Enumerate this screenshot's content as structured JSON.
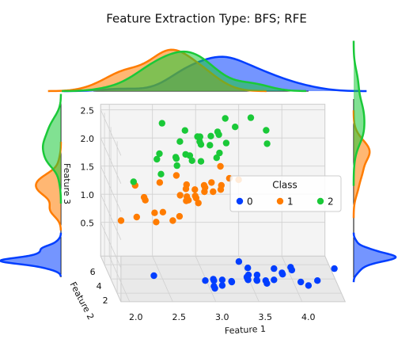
{
  "chart_data": {
    "type": "scatter3d",
    "title": "Feature Extraction Type: BFS; RFE",
    "xlabel": "Feature 1",
    "ylabel": "Feature 2",
    "zlabel": "Feature 3",
    "xlim": [
      1.9,
      4.5
    ],
    "ylim": [
      0.8,
      7.2
    ],
    "zlim": [
      -0.1,
      2.6
    ],
    "xticks": [
      {
        "value": 2,
        "label": "2.0"
      },
      2.5,
      {
        "value": 3,
        "label": "3.0"
      },
      3.5,
      {
        "value": 4,
        "label": "4.0"
      }
    ],
    "yticks": [
      2,
      4,
      6
    ],
    "zticks": [
      0.5,
      {
        "value": 1,
        "label": "1.0"
      },
      1.5,
      {
        "value": 2,
        "label": "2.0"
      },
      2.5
    ],
    "grid": true,
    "legend_title": "Class",
    "legend": "center right",
    "series": [
      {
        "name": "0",
        "color": "#023eff",
        "x": [
          3.5,
          3.0,
          3.2,
          3.1,
          3.6,
          3.9,
          3.4,
          3.4,
          2.9,
          3.1,
          3.7,
          3.4,
          3.0,
          3.0,
          4.0,
          4.4,
          3.9,
          3.5,
          3.8,
          3.8,
          3.4,
          3.7,
          3.6,
          3.3,
          3.4,
          3.0,
          3.4,
          3.5,
          2.3,
          4.2,
          4.1,
          3.2
        ],
        "y": [
          1.4,
          1.4,
          1.3,
          1.5,
          1.4,
          1.7,
          1.4,
          1.5,
          1.4,
          1.5,
          1.5,
          1.6,
          1.4,
          1.1,
          1.2,
          1.5,
          1.3,
          1.4,
          1.7,
          1.5,
          1.7,
          1.5,
          1.0,
          1.7,
          1.9,
          1.6,
          1.6,
          1.5,
          1.3,
          1.4,
          1.5,
          1.2
        ],
        "z": [
          0.2,
          0.2,
          0.2,
          0.2,
          0.2,
          0.4,
          0.3,
          0.2,
          0.2,
          0.1,
          0.2,
          0.2,
          0.1,
          0.1,
          0.2,
          0.4,
          0.4,
          0.3,
          0.3,
          0.3,
          0.2,
          0.4,
          0.2,
          0.5,
          0.2,
          0.2,
          0.4,
          0.2,
          0.3,
          0.2,
          0.1,
          0.2
        ]
      },
      {
        "name": "1",
        "color": "#ff7c00",
        "x": [
          3.2,
          3.2,
          3.1,
          2.3,
          2.8,
          2.8,
          3.3,
          2.4,
          2.9,
          2.7,
          2.0,
          3.0,
          2.2,
          2.9,
          2.9,
          3.1,
          3.0,
          2.7,
          2.2,
          2.5,
          3.2,
          2.8,
          2.5,
          2.8,
          2.9,
          3.0,
          2.8,
          2.6,
          2.4,
          2.7,
          3.4,
          2.3
        ],
        "y": [
          4.7,
          4.5,
          4.9,
          4.0,
          4.6,
          4.5,
          4.7,
          3.3,
          4.6,
          3.9,
          3.5,
          4.2,
          4.0,
          4.7,
          3.6,
          4.4,
          4.5,
          4.1,
          4.5,
          3.9,
          4.8,
          4.0,
          4.9,
          4.7,
          4.3,
          4.4,
          4.8,
          3.5,
          3.8,
          5.1,
          4.5,
          4.4
        ],
        "z": [
          1.4,
          1.5,
          1.5,
          1.3,
          1.5,
          1.3,
          1.6,
          1.0,
          1.3,
          1.4,
          1.0,
          1.5,
          1.0,
          1.4,
          1.3,
          1.4,
          1.5,
          1.0,
          1.5,
          1.1,
          1.8,
          1.3,
          1.5,
          1.2,
          1.3,
          1.4,
          1.4,
          1.0,
          1.1,
          1.6,
          1.6,
          1.3
        ]
      },
      {
        "name": "2",
        "color": "#1ac938",
        "x": [
          3.3,
          2.7,
          3.0,
          2.9,
          3.0,
          3.0,
          2.5,
          2.9,
          2.5,
          3.6,
          3.2,
          2.7,
          3.0,
          2.5,
          2.8,
          3.2,
          3.0,
          3.8,
          2.6,
          2.2,
          3.2,
          2.8,
          2.8,
          2.7,
          3.3,
          3.2,
          3.8,
          3.1,
          3.4,
          3.1
        ],
        "y": [
          6.0,
          5.1,
          5.9,
          5.6,
          5.8,
          6.6,
          4.5,
          6.3,
          5.8,
          6.1,
          5.1,
          5.3,
          5.5,
          5.0,
          5.1,
          5.3,
          5.5,
          6.7,
          6.9,
          5.0,
          5.7,
          4.9,
          6.7,
          4.9,
          5.7,
          6.0,
          6.4,
          5.4,
          5.6,
          5.1
        ],
        "z": [
          2.5,
          1.9,
          2.1,
          1.8,
          2.2,
          2.1,
          1.7,
          1.8,
          1.8,
          2.5,
          2.0,
          1.9,
          2.1,
          2.0,
          2.4,
          2.3,
          1.8,
          2.2,
          2.3,
          1.5,
          2.3,
          2.0,
          2.0,
          1.8,
          2.1,
          1.8,
          2.0,
          2.1,
          2.4,
          2.3
        ]
      }
    ]
  }
}
